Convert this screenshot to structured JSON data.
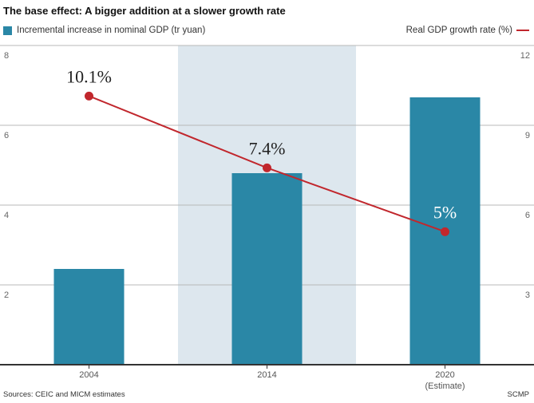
{
  "title": "The base effect: A bigger addition at a slower growth rate",
  "legend": {
    "bar_label": "Incremental increase in nominal GDP (tr yuan)",
    "line_label": "Real GDP growth rate (%)"
  },
  "footer": {
    "source": "Sources: CEIC and MICM estimates",
    "credit": "SCMP"
  },
  "colors": {
    "bar": "#2a87a6",
    "line": "#c1272d",
    "highlight": "#dde7ee",
    "grid": "#b8b8b8",
    "axis": "#333333"
  },
  "chart_data": {
    "type": "bar",
    "title": "The base effect: A bigger addition at a slower growth rate",
    "categories": [
      "2004",
      "2014",
      "2020"
    ],
    "category_sublabels": [
      "",
      "",
      "(Estimate)"
    ],
    "highlight_category": "2014",
    "series": [
      {
        "name": "Incremental increase in nominal GDP (tr yuan)",
        "type": "bar",
        "axis": "left",
        "values": [
          2.4,
          4.8,
          6.7
        ]
      },
      {
        "name": "Real GDP growth rate (%)",
        "type": "line",
        "axis": "right",
        "values": [
          10.1,
          7.4,
          5
        ],
        "data_labels": [
          "10.1%",
          "7.4%",
          "5%"
        ]
      }
    ],
    "left_axis": {
      "ylim": [
        0,
        8
      ],
      "ticks": [
        2,
        4,
        6,
        8
      ]
    },
    "right_axis": {
      "ylim": [
        0,
        12
      ],
      "ticks": [
        3,
        6,
        9,
        12
      ]
    }
  }
}
